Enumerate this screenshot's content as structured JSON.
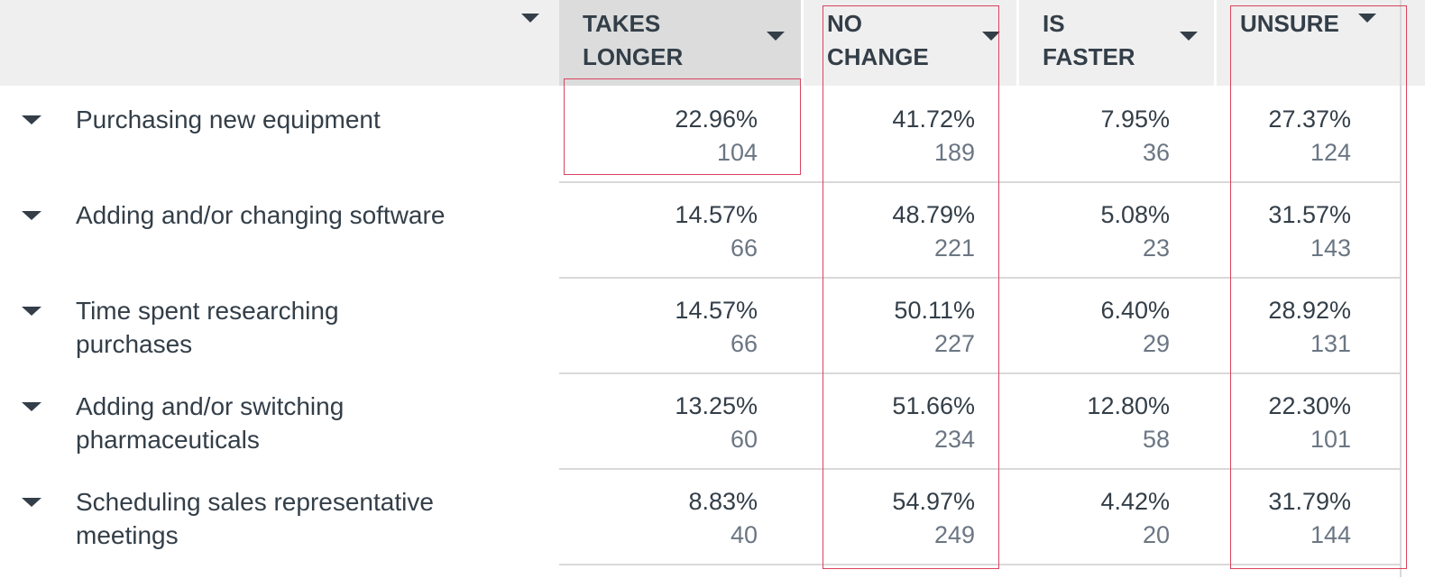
{
  "header": {
    "columns": [
      {
        "label": "TAKES\nLONGER"
      },
      {
        "label": "NO\nCHANGE"
      },
      {
        "label": "IS\nFASTER"
      },
      {
        "label": "UNSURE"
      }
    ]
  },
  "rows": [
    {
      "label": "Purchasing new equipment",
      "cells": [
        {
          "pct": "22.96%",
          "count": "104"
        },
        {
          "pct": "41.72%",
          "count": "189"
        },
        {
          "pct": "7.95%",
          "count": "36"
        },
        {
          "pct": "27.37%",
          "count": "124"
        }
      ]
    },
    {
      "label": "Adding and/or changing software",
      "cells": [
        {
          "pct": "14.57%",
          "count": "66"
        },
        {
          "pct": "48.79%",
          "count": "221"
        },
        {
          "pct": "5.08%",
          "count": "23"
        },
        {
          "pct": "31.57%",
          "count": "143"
        }
      ]
    },
    {
      "label": "Time spent researching purchases",
      "cells": [
        {
          "pct": "14.57%",
          "count": "66"
        },
        {
          "pct": "50.11%",
          "count": "227"
        },
        {
          "pct": "6.40%",
          "count": "29"
        },
        {
          "pct": "28.92%",
          "count": "131"
        }
      ]
    },
    {
      "label": "Adding and/or switching pharmaceuticals",
      "cells": [
        {
          "pct": "13.25%",
          "count": "60"
        },
        {
          "pct": "51.66%",
          "count": "234"
        },
        {
          "pct": "12.80%",
          "count": "58"
        },
        {
          "pct": "22.30%",
          "count": "101"
        }
      ]
    },
    {
      "label": "Scheduling sales representative meetings",
      "cells": [
        {
          "pct": "8.83%",
          "count": "40"
        },
        {
          "pct": "54.97%",
          "count": "249"
        },
        {
          "pct": "4.42%",
          "count": "20"
        },
        {
          "pct": "31.79%",
          "count": "144"
        }
      ]
    }
  ],
  "colors": {
    "highlight": "#d9435f",
    "text": "#333e48",
    "muted": "#6b7683"
  }
}
